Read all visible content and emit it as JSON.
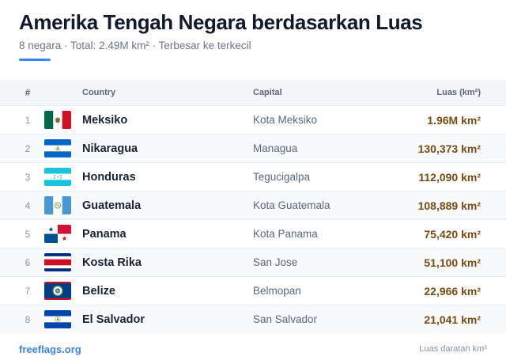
{
  "header": {
    "title": "Amerika Tengah Negara berdasarkan Luas",
    "subtitle": "8 negara · Total: 2.49M km² · Terbesar ke terkecil"
  },
  "table": {
    "columns": {
      "num": "#",
      "country": "Country",
      "capital": "Capital",
      "area": "Luas (km²)"
    },
    "rows": [
      {
        "rank": "1",
        "flag": "mexico-flag-icon",
        "country": "Meksiko",
        "capital": "Kota Meksiko",
        "area": "1.96M km²"
      },
      {
        "rank": "2",
        "flag": "nicaragua-flag-icon",
        "country": "Nikaragua",
        "capital": "Managua",
        "area": "130,373 km²"
      },
      {
        "rank": "3",
        "flag": "honduras-flag-icon",
        "country": "Honduras",
        "capital": "Tegucigalpa",
        "area": "112,090 km²"
      },
      {
        "rank": "4",
        "flag": "guatemala-flag-icon",
        "country": "Guatemala",
        "capital": "Kota Guatemala",
        "area": "108,889 km²"
      },
      {
        "rank": "5",
        "flag": "panama-flag-icon",
        "country": "Panama",
        "capital": "Kota Panama",
        "area": "75,420 km²"
      },
      {
        "rank": "6",
        "flag": "costa-rica-flag-icon",
        "country": "Kosta Rika",
        "capital": "San Jose",
        "area": "51,100 km²"
      },
      {
        "rank": "7",
        "flag": "belize-flag-icon",
        "country": "Belize",
        "capital": "Belmopan",
        "area": "22,966 km²"
      },
      {
        "rank": "8",
        "flag": "el-salvador-flag-icon",
        "country": "El Salvador",
        "capital": "San Salvador",
        "area": "21,041 km²"
      }
    ]
  },
  "footer": {
    "site": "freeflags.org",
    "note": "Luas daratan km²"
  },
  "colors": {
    "accent": "#3b82f6",
    "area_text": "#7a4b12",
    "header_bg": "#f3f5f8"
  }
}
